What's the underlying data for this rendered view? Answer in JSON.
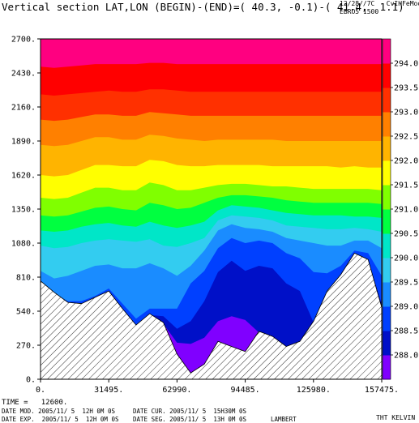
{
  "header": {
    "title": "Vertical section LAT,LON (BEGIN)-(END)=( 40.3, -0.1)-( 41.4,  1.1)",
    "code_line1": "12/28//7C   CvIHFeMoo",
    "code_line2": "EBRO5 1500"
  },
  "footer": {
    "time": "TIME =   12600.",
    "date_mod": "DATE MOD. 2005/11/ 5  12H 0M 0S",
    "date_cur": "DATE CUR. 2005/11/ 5  15H30M 0S",
    "date_exp": "DATE EXP.  2005/11/ 5  12H 0M 0S",
    "date_seg": "DATE SEG. 2005/11/ 5  13H 0M 0S",
    "projection": "LAMBERT",
    "units": "THT KELVIN"
  },
  "chart_data": {
    "type": "heatmap",
    "title": "Vertical section LAT,LON (BEGIN)-(END)=( 40.3, -0.1)-( 41.4,  1.1)",
    "xlabel": "",
    "ylabel": "",
    "xlim": [
      0,
      157475
    ],
    "ylim": [
      0,
      2700
    ],
    "x_ticks": [
      "0.",
      "31495.",
      "62990.",
      "94485.",
      "125980.",
      "157475."
    ],
    "y_ticks": [
      "0.",
      "270.",
      "540.",
      "810.",
      "1080.",
      "1350.",
      "1620.",
      "1890.",
      "2160.",
      "2430.",
      "2700."
    ],
    "colorbar": {
      "label": "THT KELVIN",
      "levels": [
        288.0,
        288.5,
        289.0,
        289.5,
        290.0,
        290.5,
        291.0,
        291.5,
        292.0,
        292.5,
        293.0,
        293.5,
        294.0
      ],
      "tick_labels": [
        "288.0",
        "288.5",
        "289.0",
        "289.5",
        "290.0",
        "290.5",
        "291.0",
        "291.5",
        "292.0",
        "292.5",
        "293.0",
        "293.5",
        "294.0"
      ],
      "colors": [
        "#8000ff",
        "#0010c8",
        "#0040ff",
        "#1a8cff",
        "#33ccf0",
        "#00e6c8",
        "#00ff40",
        "#80ff00",
        "#ffff00",
        "#ffb400",
        "#ff8000",
        "#ff3000",
        "#ff0000",
        "#ff0080"
      ]
    },
    "terrain_x": [
      0,
      6300,
      12600,
      18900,
      25200,
      31500,
      37800,
      44100,
      50400,
      56700,
      63000,
      69300,
      75600,
      81900,
      88200,
      94500,
      100800,
      107100,
      113400,
      119700,
      126000,
      132300,
      138600,
      144900,
      151200,
      157475
    ],
    "terrain_height": [
      780,
      690,
      610,
      600,
      650,
      700,
      560,
      430,
      520,
      450,
      200,
      50,
      120,
      300,
      260,
      220,
      380,
      340,
      260,
      300,
      460,
      700,
      830,
      1000,
      950,
      570
    ],
    "isentropes": [
      {
        "level": 288.0,
        "height": [
          null,
          null,
          null,
          null,
          null,
          null,
          null,
          null,
          null,
          null,
          290,
          280,
          330,
          460,
          500,
          470,
          null,
          null,
          null,
          null,
          null,
          null,
          null,
          null,
          null,
          null
        ]
      },
      {
        "level": 288.5,
        "height": [
          null,
          null,
          null,
          null,
          null,
          null,
          null,
          null,
          null,
          500,
          400,
          460,
          620,
          850,
          940,
          860,
          900,
          880,
          760,
          700,
          null,
          null,
          null,
          null,
          null,
          600
        ]
      },
      {
        "level": 289.0,
        "height": [
          null,
          null,
          620,
          620,
          660,
          720,
          600,
          480,
          560,
          560,
          560,
          760,
          860,
          1040,
          1120,
          1080,
          1100,
          1080,
          1000,
          960,
          850,
          840,
          900,
          1020,
          1000,
          820
        ]
      },
      {
        "level": 289.5,
        "height": [
          860,
          800,
          820,
          860,
          900,
          910,
          880,
          880,
          920,
          880,
          820,
          900,
          1020,
          1180,
          1230,
          1200,
          1190,
          1170,
          1120,
          1100,
          1080,
          1060,
          1060,
          1100,
          1100,
          1040
        ]
      },
      {
        "level": 290.0,
        "height": [
          1060,
          1040,
          1050,
          1080,
          1100,
          1110,
          1100,
          1090,
          1110,
          1060,
          1050,
          1080,
          1120,
          1260,
          1300,
          1290,
          1280,
          1260,
          1220,
          1210,
          1200,
          1190,
          1190,
          1200,
          1190,
          1170
        ]
      },
      {
        "level": 290.5,
        "height": [
          1180,
          1170,
          1180,
          1210,
          1230,
          1240,
          1220,
          1210,
          1250,
          1220,
          1200,
          1220,
          1250,
          1340,
          1380,
          1370,
          1360,
          1340,
          1320,
          1310,
          1300,
          1300,
          1300,
          1290,
          1290,
          1280
        ]
      },
      {
        "level": 291.0,
        "height": [
          1300,
          1290,
          1300,
          1330,
          1360,
          1370,
          1350,
          1340,
          1400,
          1380,
          1350,
          1360,
          1400,
          1440,
          1460,
          1460,
          1450,
          1440,
          1420,
          1410,
          1400,
          1400,
          1400,
          1400,
          1400,
          1390
        ]
      },
      {
        "level": 291.5,
        "height": [
          1440,
          1430,
          1440,
          1480,
          1520,
          1520,
          1500,
          1500,
          1560,
          1540,
          1500,
          1500,
          1520,
          1540,
          1550,
          1550,
          1540,
          1530,
          1530,
          1520,
          1510,
          1510,
          1510,
          1510,
          1510,
          1500
        ]
      },
      {
        "level": 292.0,
        "height": [
          1620,
          1610,
          1620,
          1660,
          1700,
          1700,
          1690,
          1690,
          1740,
          1730,
          1700,
          1690,
          1690,
          1700,
          1700,
          1700,
          1700,
          1690,
          1690,
          1690,
          1690,
          1690,
          1680,
          1690,
          1680,
          1680
        ]
      },
      {
        "level": 292.5,
        "height": [
          1860,
          1850,
          1860,
          1890,
          1920,
          1920,
          1900,
          1900,
          1940,
          1930,
          1910,
          1900,
          1890,
          1900,
          1900,
          1900,
          1900,
          1900,
          1890,
          1890,
          1890,
          1890,
          1890,
          1890,
          1890,
          1890
        ]
      },
      {
        "level": 293.0,
        "height": [
          2060,
          2050,
          2060,
          2080,
          2100,
          2100,
          2090,
          2090,
          2120,
          2110,
          2100,
          2090,
          2090,
          2090,
          2090,
          2090,
          2090,
          2090,
          2090,
          2090,
          2090,
          2090,
          2090,
          2090,
          2090,
          2090
        ]
      },
      {
        "level": 293.5,
        "height": [
          2260,
          2250,
          2260,
          2270,
          2280,
          2290,
          2280,
          2280,
          2300,
          2300,
          2290,
          2280,
          2280,
          2280,
          2280,
          2280,
          2280,
          2280,
          2280,
          2280,
          2280,
          2280,
          2280,
          2280,
          2280,
          2280
        ]
      },
      {
        "level": 294.0,
        "height": [
          2480,
          2470,
          2480,
          2490,
          2500,
          2500,
          2500,
          2500,
          2510,
          2510,
          2500,
          2500,
          2500,
          2500,
          2500,
          2500,
          2500,
          2500,
          2500,
          2500,
          2500,
          2500,
          2500,
          2500,
          2500,
          2500
        ]
      }
    ]
  }
}
